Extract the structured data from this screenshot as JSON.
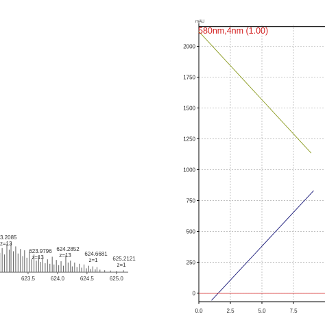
{
  "chart_data": [
    {
      "type": "bar",
      "title": "",
      "xlabel": "",
      "ylabel": "",
      "x_ticks": [
        "623.5",
        "624.0",
        "624.5",
        "625.0"
      ],
      "xlim": [
        623.0,
        625.2
      ],
      "ylim": [
        0,
        100
      ],
      "peaks_x": [
        623.02,
        623.06,
        623.1,
        623.14,
        623.18,
        623.21,
        623.25,
        623.29,
        623.33,
        623.37,
        623.41,
        623.44,
        623.48,
        623.52,
        623.56,
        623.6,
        623.64,
        623.68,
        623.71,
        623.75,
        623.79,
        623.83,
        623.87,
        623.91,
        623.94,
        623.98,
        624.02,
        624.06,
        624.1,
        624.14,
        624.18,
        624.22,
        624.25,
        624.29,
        624.33,
        624.37,
        624.41,
        624.45,
        624.49,
        624.53,
        624.56,
        624.6,
        624.64,
        624.67,
        624.72,
        624.8,
        624.9,
        625.0,
        625.12
      ],
      "peaks_y": [
        60,
        75,
        55,
        88,
        70,
        92,
        65,
        80,
        58,
        72,
        50,
        68,
        45,
        62,
        40,
        55,
        36,
        50,
        32,
        45,
        28,
        40,
        26,
        48,
        24,
        38,
        22,
        34,
        20,
        52,
        30,
        36,
        18,
        30,
        16,
        26,
        14,
        24,
        12,
        20,
        10,
        18,
        9,
        16,
        8,
        6,
        5,
        4,
        6
      ],
      "annotations": [
        {
          "label": "3.2085",
          "z": "z=13",
          "x": 623.2
        },
        {
          "label": "623.9796",
          "z": "z=13",
          "x": 623.98
        },
        {
          "label": "624.2852",
          "z": "z=13",
          "x": 624.29
        },
        {
          "label": "624.6681",
          "z": "z=1",
          "x": 624.67
        },
        {
          "label": "625.2121",
          "z": "z=1",
          "x": 625.12
        }
      ]
    },
    {
      "type": "line",
      "title": "580nm,4nm (1.00)",
      "xlabel": "",
      "ylabel": "mAU",
      "xlim": [
        0,
        10
      ],
      "ylim": [
        -70,
        2175
      ],
      "x_ticks": [
        "0.0",
        "2.5",
        "5.0",
        "7.5"
      ],
      "y_ticks": [
        "0",
        "250",
        "500",
        "750",
        "1000",
        "1250",
        "1500",
        "1750",
        "2000"
      ],
      "grid": true,
      "series": [
        {
          "color": "#8a9a1e",
          "x": [
            0,
            8.9
          ],
          "y": [
            2120,
            1135
          ]
        },
        {
          "color": "#1a1a7a",
          "x": [
            1.0,
            9.1
          ],
          "y": [
            -60,
            830
          ]
        },
        {
          "color": "#d42020",
          "x": [
            0,
            10
          ],
          "y": [
            0,
            0
          ]
        },
        {
          "color": "#000000",
          "x": [
            0,
            10
          ],
          "y": [
            2160,
            2160
          ]
        }
      ]
    }
  ]
}
